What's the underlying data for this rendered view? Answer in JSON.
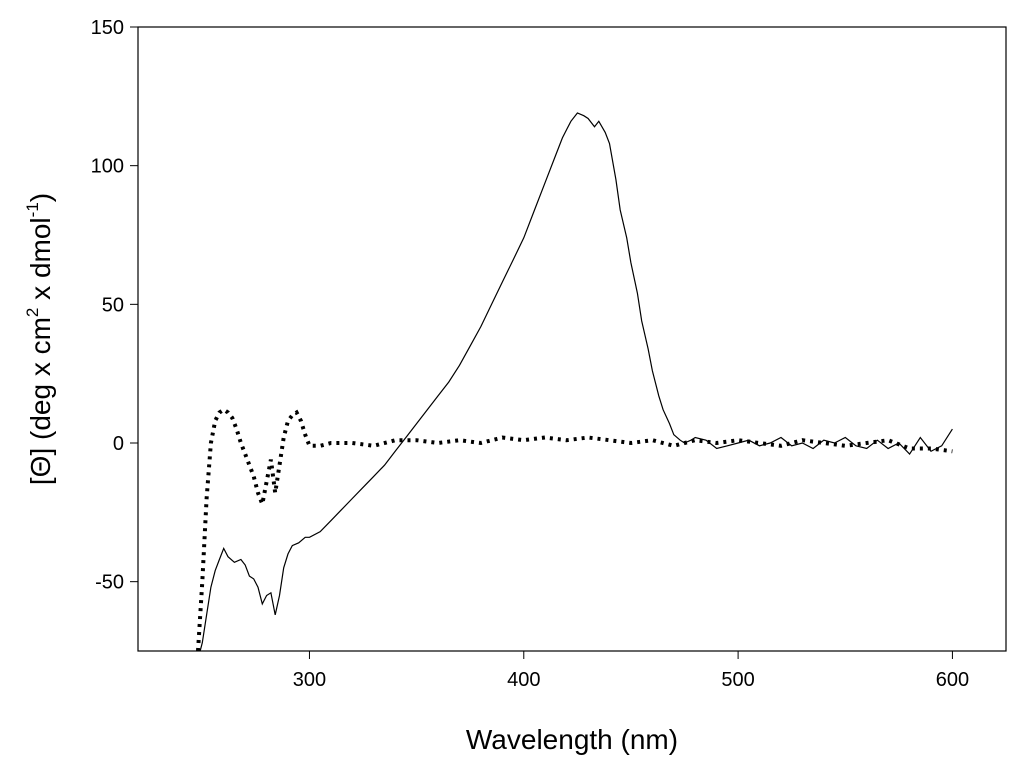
{
  "chart_data": {
    "type": "line",
    "xlabel": "Wavelength (nm)",
    "ylabel": {
      "prefix": "[Θ] (deg x cm",
      "sup1": "2",
      "middle": " x dmol",
      "sup2": "-1",
      "suffix": ")"
    },
    "xlim": [
      220,
      625
    ],
    "ylim": [
      -75,
      150
    ],
    "xticks": [
      300,
      400,
      500,
      600
    ],
    "yticks": [
      -50,
      0,
      50,
      100,
      150
    ],
    "xtick_labels": [
      "300",
      "400",
      "500",
      "600"
    ],
    "ytick_labels": [
      "-50",
      "0",
      "50",
      "100",
      "150"
    ],
    "grid": false,
    "legend": "none",
    "series": [
      {
        "style": "solid",
        "x": [
          248,
          250,
          252,
          254,
          256,
          258,
          260,
          262,
          265,
          268,
          270,
          272,
          274,
          276,
          278,
          280,
          282,
          284,
          286,
          288,
          290,
          292,
          295,
          298,
          300,
          305,
          310,
          315,
          320,
          325,
          330,
          335,
          340,
          345,
          350,
          355,
          360,
          365,
          370,
          375,
          380,
          385,
          390,
          395,
          400,
          405,
          410,
          415,
          418,
          420,
          422,
          425,
          428,
          430,
          433,
          435,
          438,
          440,
          443,
          445,
          448,
          450,
          453,
          455,
          458,
          460,
          463,
          465,
          468,
          470,
          473,
          475,
          478,
          480,
          485,
          490,
          495,
          500,
          505,
          510,
          515,
          520,
          525,
          530,
          535,
          540,
          545,
          550,
          555,
          560,
          565,
          570,
          575,
          580,
          585,
          590,
          595,
          600
        ],
        "y": [
          -78,
          -72,
          -62,
          -52,
          -46,
          -42,
          -38,
          -41,
          -43,
          -42,
          -44,
          -48,
          -49,
          -52,
          -58,
          -55,
          -54,
          -62,
          -55,
          -45,
          -40,
          -37,
          -36,
          -34,
          -34,
          -32,
          -28,
          -24,
          -20,
          -16,
          -12,
          -8,
          -3,
          2,
          7,
          12,
          17,
          22,
          28,
          35,
          42,
          50,
          58,
          66,
          74,
          84,
          94,
          104,
          110,
          113,
          116,
          119,
          118,
          117,
          114,
          116,
          112,
          108,
          95,
          84,
          74,
          65,
          54,
          44,
          34,
          26,
          17,
          12,
          7,
          3,
          1,
          0,
          1,
          2,
          1,
          -2,
          -1,
          0,
          1,
          -1,
          0,
          2,
          -1,
          0,
          -2,
          1,
          0,
          2,
          -1,
          -2,
          1,
          -2,
          0,
          -4,
          2,
          -3,
          -1,
          5
        ]
      },
      {
        "style": "dotted",
        "x": [
          248,
          250,
          252,
          254,
          256,
          258,
          260,
          262,
          264,
          266,
          268,
          270,
          272,
          274,
          276,
          278,
          280,
          282,
          284,
          286,
          288,
          290,
          292,
          294,
          296,
          298,
          300,
          305,
          310,
          320,
          330,
          340,
          350,
          360,
          370,
          380,
          390,
          400,
          410,
          420,
          430,
          440,
          450,
          460,
          470,
          480,
          490,
          500,
          510,
          520,
          530,
          540,
          550,
          560,
          570,
          580,
          590,
          600
        ],
        "y": [
          -75,
          -50,
          -20,
          0,
          8,
          11,
          12,
          11,
          9,
          5,
          0,
          -4,
          -8,
          -12,
          -18,
          -22,
          -14,
          -6,
          -18,
          -8,
          2,
          8,
          10,
          11,
          8,
          3,
          -1,
          -1,
          0,
          0,
          -1,
          1,
          1,
          0,
          1,
          0,
          2,
          1,
          2,
          1,
          2,
          1,
          0,
          1,
          -1,
          1,
          0,
          1,
          0,
          -1,
          1,
          0,
          -1,
          0,
          1,
          -2,
          -2,
          -3
        ]
      }
    ]
  }
}
